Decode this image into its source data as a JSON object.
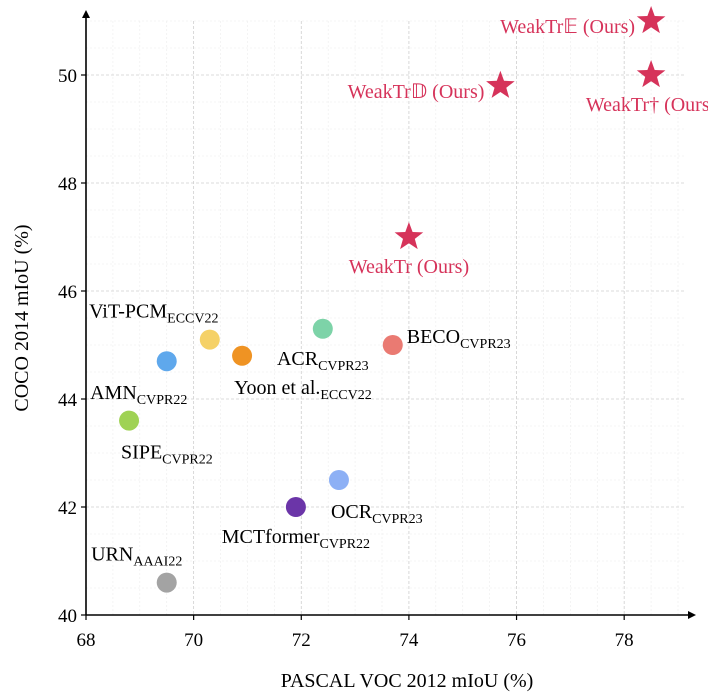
{
  "chart_data": {
    "type": "scatter",
    "title": "",
    "xlabel": "PASCAL VOC 2012 mIoU (%)",
    "ylabel": "COCO 2014 mIoU (%)",
    "xlim": [
      68,
      79
    ],
    "ylim": [
      40,
      51
    ],
    "xticks": [
      68,
      70,
      72,
      74,
      76,
      78
    ],
    "yticks": [
      40,
      42,
      44,
      46,
      48,
      50
    ],
    "grid": true,
    "points": [
      {
        "label": "ViT-PCM",
        "sub": "ECCV22",
        "x": 70.3,
        "y": 45.1,
        "color": "#f5d167",
        "marker": "circle",
        "label_anchor": "above-left"
      },
      {
        "label": "AMN",
        "sub": "CVPR22",
        "x": 69.5,
        "y": 44.7,
        "color": "#5fa8ec",
        "marker": "circle",
        "label_anchor": "below-left"
      },
      {
        "label": "Yoon et al.",
        "sub": "ECCV22",
        "x": 70.9,
        "y": 44.8,
        "color": "#ef9323",
        "marker": "circle",
        "label_anchor": "below-right"
      },
      {
        "label": "ACR",
        "sub": "CVPR23",
        "x": 72.4,
        "y": 45.3,
        "color": "#7dd3a8",
        "marker": "circle",
        "label_anchor": "below"
      },
      {
        "label": "BECO",
        "sub": "CVPR23",
        "x": 73.7,
        "y": 45.0,
        "color": "#ea7a72",
        "marker": "circle",
        "label_anchor": "right"
      },
      {
        "label": "SIPE",
        "sub": "CVPR22",
        "x": 68.8,
        "y": 43.6,
        "color": "#9fd254",
        "marker": "circle",
        "label_anchor": "below-right"
      },
      {
        "label": "OCR",
        "sub": "CVPR23",
        "x": 72.7,
        "y": 42.5,
        "color": "#8db0f5",
        "marker": "circle",
        "label_anchor": "below-right"
      },
      {
        "label": "MCTformer",
        "sub": "CVPR22",
        "x": 71.9,
        "y": 42.0,
        "color": "#6b35a8",
        "marker": "circle",
        "label_anchor": "below"
      },
      {
        "label": "URN",
        "sub": "AAAI22",
        "x": 69.5,
        "y": 40.6,
        "color": "#a3a3a3",
        "marker": "circle",
        "label_anchor": "above"
      },
      {
        "label": "WeakTr (Ours)",
        "sub": "",
        "x": 74.0,
        "y": 47.0,
        "color": "#d6335a",
        "marker": "star",
        "label_anchor": "below",
        "ours": true
      },
      {
        "label": "WeakTr𝔻 (Ours)",
        "sub": "",
        "x": 75.7,
        "y": 49.8,
        "color": "#d6335a",
        "marker": "star",
        "label_anchor": "left",
        "ours": true
      },
      {
        "label": "WeakTr𝔼 (Ours)",
        "sub": "",
        "x": 78.5,
        "y": 51.0,
        "color": "#d6335a",
        "marker": "star",
        "label_anchor": "left",
        "ours": true
      },
      {
        "label": "WeakTr† (Ours)",
        "sub": "",
        "x": 78.5,
        "y": 50.0,
        "color": "#d6335a",
        "marker": "star",
        "label_anchor": "below",
        "ours": true
      }
    ]
  }
}
